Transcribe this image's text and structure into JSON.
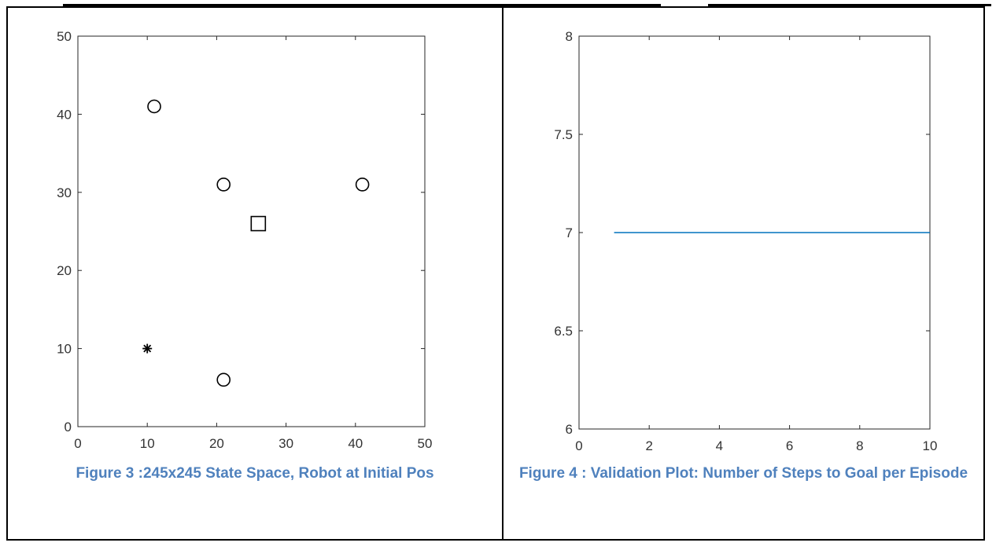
{
  "chart_data": [
    {
      "type": "scatter",
      "caption": "Figure 3 :245x245 State Space, Robot at Initial Pos",
      "xlim": [
        0,
        50
      ],
      "ylim": [
        0,
        50
      ],
      "xticks": [
        "0",
        "10",
        "20",
        "30",
        "40",
        "50"
      ],
      "yticks": [
        "0",
        "10",
        "20",
        "30",
        "40",
        "50"
      ],
      "grid": false,
      "series": [
        {
          "marker": "circle",
          "points": [
            [
              11,
              41
            ],
            [
              21,
              31
            ],
            [
              41,
              31
            ],
            [
              21,
              6
            ]
          ]
        },
        {
          "marker": "square",
          "points": [
            [
              26,
              26
            ]
          ]
        },
        {
          "marker": "asterisk",
          "points": [
            [
              10,
              10
            ]
          ]
        }
      ]
    },
    {
      "type": "line",
      "caption": "Figure 4 : Validation Plot: Number of Steps to Goal per Episode",
      "xlim": [
        0,
        10
      ],
      "ylim": [
        6,
        8
      ],
      "xticks": [
        "0",
        "2",
        "4",
        "6",
        "8",
        "10"
      ],
      "yticks": [
        "6",
        "6.5",
        "7",
        "7.5",
        "8"
      ],
      "grid": false,
      "color": "#0072bd",
      "series": [
        {
          "x": [
            1,
            2,
            3,
            4,
            5,
            6,
            7,
            8,
            9,
            10
          ],
          "y": [
            7,
            7,
            7,
            7,
            7,
            7,
            7,
            7,
            7,
            7
          ]
        }
      ]
    }
  ]
}
